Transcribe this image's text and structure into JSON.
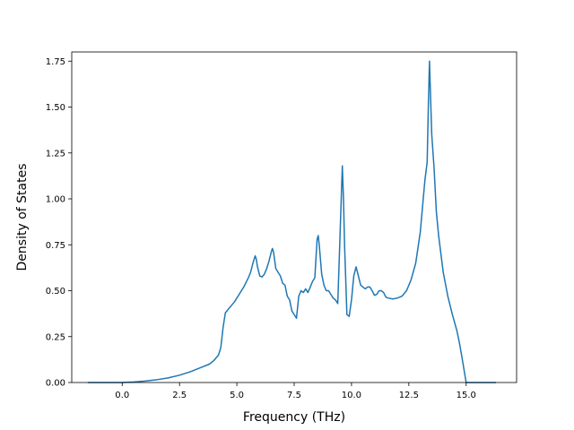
{
  "chart_data": {
    "type": "line",
    "title": "",
    "xlabel": "Frequency (THz)",
    "ylabel": "Density of States",
    "xlim": [
      -2.2,
      17.2
    ],
    "ylim": [
      0,
      1.8
    ],
    "xticks": [
      0.0,
      2.5,
      5.0,
      7.5,
      10.0,
      12.5,
      15.0
    ],
    "xtick_labels": [
      "0.0",
      "2.5",
      "5.0",
      "7.5",
      "10.0",
      "12.5",
      "15.0"
    ],
    "yticks": [
      0.0,
      0.25,
      0.5,
      0.75,
      1.0,
      1.25,
      1.5,
      1.75
    ],
    "ytick_labels": [
      "0.00",
      "0.25",
      "0.50",
      "0.75",
      "1.00",
      "1.25",
      "1.50",
      "1.75"
    ],
    "grid": false,
    "line_color": "#1f77b4",
    "series": [
      {
        "x": [
          -1.5,
          -1.0,
          -0.5,
          0.0,
          0.5,
          1.0,
          1.5,
          2.0,
          2.5,
          3.0,
          3.5,
          3.8,
          4.0,
          4.2,
          4.3,
          4.4,
          4.5,
          4.7,
          4.9,
          5.1,
          5.3,
          5.5,
          5.6,
          5.7,
          5.8,
          5.85,
          5.9,
          6.0,
          6.1,
          6.2,
          6.3,
          6.4,
          6.5,
          6.55,
          6.6,
          6.7,
          6.8,
          6.9,
          7.0,
          7.1,
          7.2,
          7.3,
          7.4,
          7.5,
          7.6,
          7.7,
          7.8,
          7.9,
          8.0,
          8.1,
          8.2,
          8.3,
          8.4,
          8.5,
          8.55,
          8.6,
          8.7,
          8.8,
          8.9,
          9.0,
          9.1,
          9.2,
          9.3,
          9.4,
          9.5,
          9.6,
          9.65,
          9.7,
          9.8,
          9.9,
          10.0,
          10.1,
          10.2,
          10.3,
          10.4,
          10.5,
          10.6,
          10.7,
          10.8,
          10.9,
          11.0,
          11.1,
          11.2,
          11.3,
          11.4,
          11.5,
          11.6,
          11.8,
          12.0,
          12.2,
          12.4,
          12.6,
          12.8,
          13.0,
          13.2,
          13.3,
          13.35,
          13.4,
          13.5,
          13.6,
          13.7,
          13.8,
          14.0,
          14.2,
          14.4,
          14.6,
          14.7,
          14.8,
          15.0,
          16.3
        ],
        "y": [
          0.0,
          0.0,
          0.0,
          0.0,
          0.003,
          0.008,
          0.015,
          0.025,
          0.04,
          0.06,
          0.085,
          0.1,
          0.12,
          0.15,
          0.19,
          0.3,
          0.38,
          0.41,
          0.44,
          0.48,
          0.52,
          0.57,
          0.6,
          0.65,
          0.69,
          0.67,
          0.63,
          0.58,
          0.575,
          0.59,
          0.62,
          0.66,
          0.71,
          0.73,
          0.71,
          0.62,
          0.6,
          0.58,
          0.54,
          0.53,
          0.47,
          0.45,
          0.39,
          0.37,
          0.35,
          0.47,
          0.5,
          0.49,
          0.51,
          0.49,
          0.52,
          0.55,
          0.57,
          0.78,
          0.8,
          0.74,
          0.59,
          0.53,
          0.5,
          0.5,
          0.48,
          0.46,
          0.45,
          0.43,
          0.8,
          1.18,
          1.0,
          0.74,
          0.37,
          0.36,
          0.45,
          0.58,
          0.63,
          0.58,
          0.53,
          0.52,
          0.51,
          0.52,
          0.52,
          0.5,
          0.475,
          0.48,
          0.5,
          0.5,
          0.49,
          0.465,
          0.46,
          0.455,
          0.46,
          0.47,
          0.5,
          0.56,
          0.65,
          0.82,
          1.1,
          1.2,
          1.5,
          1.75,
          1.35,
          1.17,
          0.93,
          0.8,
          0.6,
          0.47,
          0.37,
          0.28,
          0.22,
          0.15,
          0.0,
          0.0
        ]
      }
    ]
  }
}
